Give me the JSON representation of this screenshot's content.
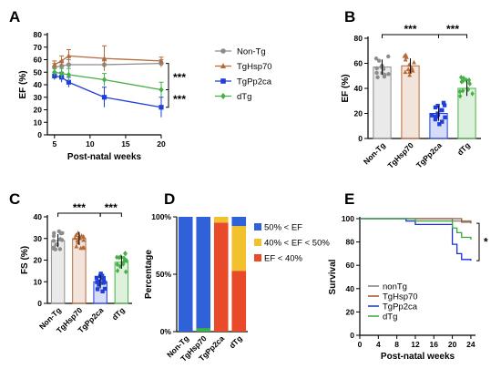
{
  "chart_data": [
    {
      "panel": "A",
      "type": "line",
      "xlabel": "Post-natal weeks",
      "ylabel": "EF (%)",
      "xlim": [
        4,
        20
      ],
      "ylim": [
        0,
        80
      ],
      "xticks": [
        "5",
        "10",
        "15",
        "20"
      ],
      "yticks": [
        "0",
        "10",
        "20",
        "30",
        "40",
        "50",
        "60",
        "70",
        "80"
      ],
      "series": [
        {
          "name": "Non-Tg",
          "color": "#8c8c8c",
          "marker": "circle",
          "x": [
            5,
            6,
            7,
            12,
            20
          ],
          "y": [
            54,
            55,
            56,
            56,
            57
          ],
          "err": [
            3,
            4,
            4,
            3,
            3
          ]
        },
        {
          "name": "TgHsp70",
          "color": "#b66a3a",
          "marker": "triangle",
          "x": [
            5,
            6,
            7,
            12,
            20
          ],
          "y": [
            56,
            59,
            63,
            61,
            59
          ],
          "err": [
            3,
            4,
            5,
            10,
            3
          ]
        },
        {
          "name": "TgPp2ca",
          "color": "#1f3fd8",
          "marker": "square",
          "x": [
            5,
            6,
            7,
            12,
            20
          ],
          "y": [
            47,
            46,
            42,
            30,
            22
          ],
          "err": [
            3,
            4,
            4,
            8,
            8
          ]
        },
        {
          "name": "dTg",
          "color": "#45b045",
          "marker": "diamond",
          "x": [
            5,
            6,
            7,
            12,
            20
          ],
          "y": [
            50,
            49,
            48,
            44,
            36
          ],
          "err": [
            3,
            4,
            5,
            5,
            6
          ]
        }
      ],
      "significance": [
        "***",
        "***"
      ]
    },
    {
      "panel": "B",
      "type": "bar",
      "ylabel": "EF (%)",
      "ylim": [
        0,
        80
      ],
      "yticks": [
        "0",
        "20",
        "40",
        "60",
        "80"
      ],
      "categories": [
        "Non-Tg",
        "TgHsp70",
        "TgPp2ca",
        "dTg"
      ],
      "values": [
        57,
        58,
        20,
        40
      ],
      "colors": [
        "#8c8c8c",
        "#b66a3a",
        "#1f3fd8",
        "#45b045"
      ],
      "significance": [
        "***",
        "***"
      ]
    },
    {
      "panel": "C",
      "type": "bar",
      "ylabel": "FS (%)",
      "ylim": [
        0,
        40
      ],
      "yticks": [
        "0",
        "10",
        "20",
        "30",
        "40"
      ],
      "categories": [
        "Non-Tg",
        "TgHsp70",
        "TgPp2ca",
        "dTg"
      ],
      "values": [
        29,
        30,
        10,
        19
      ],
      "colors": [
        "#8c8c8c",
        "#b66a3a",
        "#1f3fd8",
        "#45b045"
      ],
      "significance": [
        "***",
        "***"
      ]
    },
    {
      "panel": "D",
      "type": "bar",
      "stacked": true,
      "ylabel": "Percentage",
      "yticks": [
        "0%",
        "50%",
        "100%"
      ],
      "categories": [
        "Non-Tg",
        "TgHsp70",
        "TgPp2ca",
        "dTg"
      ],
      "series": [
        {
          "name": "EF < 40%",
          "color": "#e84a2a",
          "values": [
            0,
            0,
            95,
            53
          ]
        },
        {
          "name": "40% < EF < 50%",
          "color": "#f2c12e",
          "values": [
            0,
            0,
            5,
            39
          ]
        },
        {
          "name": "50% < EF",
          "color": "#2f62d8",
          "values": [
            100,
            100,
            0,
            8
          ]
        }
      ],
      "extra_strips": [
        {
          "category": "TgHsp70",
          "color": "#3cb34a",
          "from": 0,
          "to": 3
        }
      ],
      "legend_order": [
        "50% < EF",
        "40% < EF < 50%",
        "EF < 40%"
      ]
    },
    {
      "panel": "E",
      "type": "line",
      "step": true,
      "ylabel": "Survival",
      "xlabel": "Post-natal weeks",
      "xlim": [
        0,
        25
      ],
      "ylim": [
        0,
        100
      ],
      "xticks": [
        "0",
        "4",
        "8",
        "12",
        "16",
        "20",
        "24"
      ],
      "yticks": [
        "0",
        "20",
        "40",
        "60",
        "80",
        "100"
      ],
      "series": [
        {
          "name": "nonTg",
          "color": "#808080",
          "x": [
            0,
            20,
            24
          ],
          "y": [
            100,
            98,
            96
          ]
        },
        {
          "name": "TgHsp70",
          "color": "#a0522d",
          "x": [
            0,
            22,
            24
          ],
          "y": [
            100,
            97,
            96
          ]
        },
        {
          "name": "TgPp2ca",
          "color": "#1a2ee0",
          "x": [
            0,
            10,
            12,
            20,
            21,
            22,
            24
          ],
          "y": [
            100,
            98,
            95,
            78,
            70,
            65,
            64
          ]
        },
        {
          "name": "dTg",
          "color": "#3aa63a",
          "x": [
            0,
            12,
            20,
            21,
            22,
            24
          ],
          "y": [
            100,
            98,
            92,
            88,
            84,
            82
          ]
        }
      ],
      "significance": [
        "*"
      ]
    }
  ],
  "labels": {
    "A": "A",
    "B": "B",
    "C": "C",
    "D": "D",
    "E": "E"
  }
}
